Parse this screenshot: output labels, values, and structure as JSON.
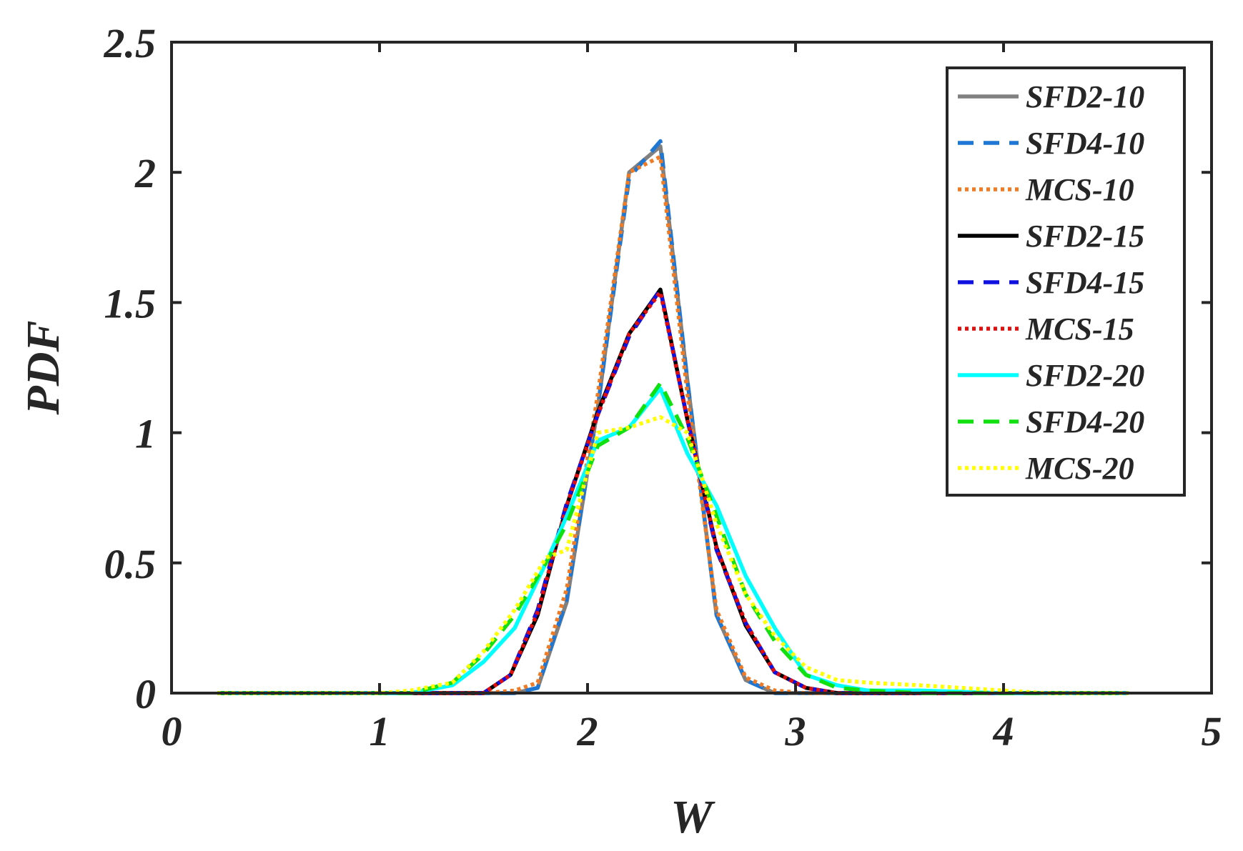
{
  "chart_data": {
    "type": "line",
    "title": "",
    "xlabel": "W",
    "ylabel": "PDF",
    "xlim": [
      0,
      5
    ],
    "ylim": [
      0,
      2.5
    ],
    "x_ticks": [
      "0",
      "1",
      "2",
      "3",
      "4",
      "5"
    ],
    "y_ticks": [
      "0",
      "0.5",
      "1",
      "1.5",
      "2",
      "2.5"
    ],
    "grid": false,
    "legend_position": "top-right",
    "series": [
      {
        "name": "SFD2-10",
        "color": "#808080",
        "dash": "solid",
        "x": [
          0.22,
          1.0,
          1.5,
          1.65,
          1.76,
          1.9,
          2.05,
          2.2,
          2.35,
          2.48,
          2.62,
          2.76,
          2.9,
          3.05,
          3.2,
          3.5,
          4.0,
          4.6
        ],
        "y": [
          0,
          0,
          0,
          0,
          0.02,
          0.35,
          1.1,
          2.0,
          2.1,
          1.2,
          0.3,
          0.05,
          0,
          0,
          0,
          0,
          0,
          0
        ]
      },
      {
        "name": "SFD4-10",
        "color": "#1f77d4",
        "dash": "dashed",
        "x": [
          0.22,
          1.0,
          1.5,
          1.65,
          1.76,
          1.9,
          2.05,
          2.2,
          2.35,
          2.48,
          2.62,
          2.76,
          2.9,
          3.05,
          3.2,
          3.5,
          4.0,
          4.6
        ],
        "y": [
          0,
          0,
          0,
          0,
          0.02,
          0.36,
          1.1,
          1.98,
          2.12,
          1.2,
          0.3,
          0.05,
          0,
          0,
          0,
          0,
          0,
          0
        ]
      },
      {
        "name": "MCS-10",
        "color": "#f07b24",
        "dash": "dotted",
        "x": [
          0.22,
          1.0,
          1.5,
          1.65,
          1.76,
          1.9,
          2.05,
          2.2,
          2.35,
          2.48,
          2.62,
          2.76,
          2.9,
          3.05,
          3.2,
          3.5,
          4.0,
          4.6
        ],
        "y": [
          0,
          0,
          0,
          0.01,
          0.04,
          0.4,
          1.15,
          2.0,
          2.06,
          1.15,
          0.32,
          0.06,
          0.01,
          0,
          0,
          0,
          0,
          0
        ]
      },
      {
        "name": "SFD2-15",
        "color": "#000000",
        "dash": "solid",
        "x": [
          0.22,
          1.0,
          1.25,
          1.5,
          1.63,
          1.76,
          1.9,
          2.05,
          2.2,
          2.35,
          2.48,
          2.62,
          2.76,
          2.9,
          3.05,
          3.2,
          3.35,
          3.6,
          4.0,
          4.6
        ],
        "y": [
          0,
          0,
          0,
          0.0,
          0.07,
          0.3,
          0.72,
          1.08,
          1.38,
          1.55,
          1.05,
          0.56,
          0.26,
          0.08,
          0.02,
          0.0,
          0,
          0,
          0,
          0
        ]
      },
      {
        "name": "SFD4-15",
        "color": "#1010e0",
        "dash": "dashed",
        "x": [
          0.22,
          1.0,
          1.25,
          1.5,
          1.63,
          1.76,
          1.9,
          2.05,
          2.2,
          2.35,
          2.48,
          2.62,
          2.76,
          2.9,
          3.05,
          3.2,
          3.35,
          3.6,
          4.0,
          4.6
        ],
        "y": [
          0,
          0,
          0,
          0.0,
          0.07,
          0.32,
          0.73,
          1.07,
          1.37,
          1.55,
          1.05,
          0.55,
          0.27,
          0.08,
          0.02,
          0.0,
          0,
          0,
          0,
          0
        ]
      },
      {
        "name": "MCS-15",
        "color": "#e01010",
        "dash": "dotted",
        "x": [
          0.22,
          1.0,
          1.25,
          1.5,
          1.63,
          1.76,
          1.9,
          2.05,
          2.2,
          2.35,
          2.48,
          2.62,
          2.76,
          2.9,
          3.05,
          3.2,
          3.35,
          3.6,
          4.0,
          4.6
        ],
        "y": [
          0,
          0,
          0,
          0.0,
          0.07,
          0.31,
          0.72,
          1.07,
          1.38,
          1.54,
          1.05,
          0.56,
          0.27,
          0.08,
          0.02,
          0.0,
          0,
          0,
          0,
          0
        ]
      },
      {
        "name": "SFD2-20",
        "color": "#00ffff",
        "dash": "solid",
        "x": [
          0.22,
          1.0,
          1.15,
          1.35,
          1.5,
          1.65,
          1.8,
          1.9,
          2.05,
          2.2,
          2.35,
          2.48,
          2.62,
          2.76,
          2.9,
          3.05,
          3.2,
          3.35,
          3.6,
          4.0,
          4.2,
          4.6
        ],
        "y": [
          0,
          0,
          0.0,
          0.03,
          0.12,
          0.25,
          0.5,
          0.68,
          0.97,
          1.02,
          1.17,
          0.92,
          0.72,
          0.45,
          0.25,
          0.07,
          0.03,
          0.01,
          0.01,
          0.0,
          0,
          0
        ]
      },
      {
        "name": "SFD4-20",
        "color": "#10e010",
        "dash": "dashed",
        "x": [
          0.22,
          1.0,
          1.15,
          1.35,
          1.5,
          1.65,
          1.8,
          1.9,
          2.05,
          2.2,
          2.35,
          2.48,
          2.62,
          2.76,
          2.9,
          3.05,
          3.2,
          3.35,
          3.6,
          4.0,
          4.2,
          4.6
        ],
        "y": [
          0,
          0,
          0.0,
          0.04,
          0.15,
          0.3,
          0.5,
          0.65,
          0.95,
          1.02,
          1.19,
          0.98,
          0.68,
          0.38,
          0.2,
          0.07,
          0.02,
          0.01,
          0.0,
          0.0,
          0,
          0
        ]
      },
      {
        "name": "MCS-20",
        "color": "#ffff00",
        "dash": "dotted",
        "x": [
          0.22,
          1.0,
          1.15,
          1.35,
          1.5,
          1.65,
          1.8,
          1.9,
          2.05,
          2.2,
          2.35,
          2.48,
          2.62,
          2.76,
          2.9,
          3.05,
          3.2,
          3.35,
          3.6,
          4.0,
          4.2,
          4.6
        ],
        "y": [
          0,
          0,
          0.01,
          0.04,
          0.16,
          0.32,
          0.52,
          0.55,
          1.0,
          1.02,
          1.06,
          1.0,
          0.65,
          0.38,
          0.22,
          0.1,
          0.05,
          0.04,
          0.03,
          0.01,
          0.0,
          0
        ]
      }
    ]
  }
}
